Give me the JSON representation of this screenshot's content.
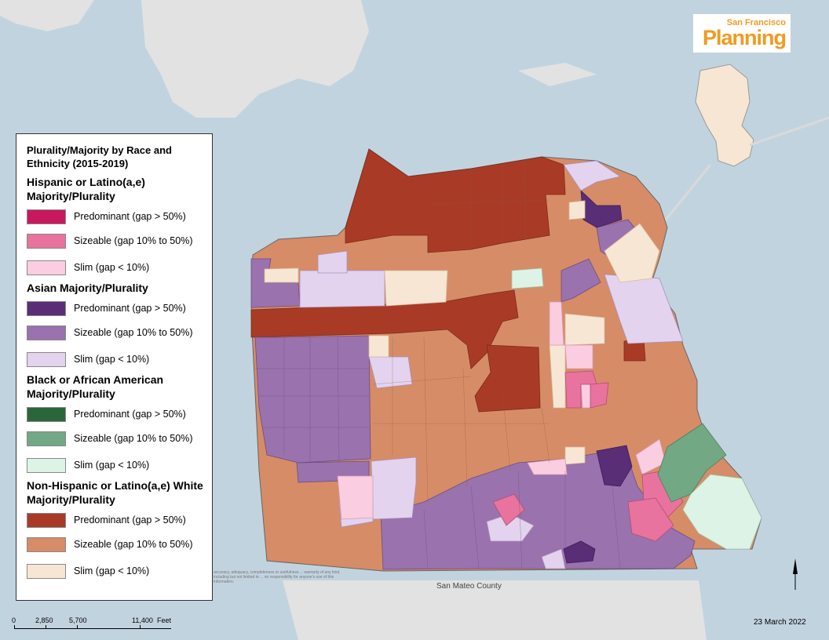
{
  "legend": {
    "title": "Plurality/Majority by Race and Ethnicity (2015-2019)",
    "groups": [
      {
        "title": "Hispanic or Latino(a,e) Majority/Plurality",
        "items": [
          {
            "label": "Predominant (gap > 50%)",
            "color": "#c7185e"
          },
          {
            "label": "Sizeable (gap 10% to 50%)",
            "color": "#e8739e"
          },
          {
            "label": "Slim (gap < 10%)",
            "color": "#fbcde0"
          }
        ]
      },
      {
        "title": "Asian Majority/Plurality",
        "items": [
          {
            "label": "Predominant (gap > 50%)",
            "color": "#5a2d77"
          },
          {
            "label": "Sizeable (gap 10% to 50%)",
            "color": "#9a72ae"
          },
          {
            "label": "Slim (gap < 10%)",
            "color": "#e3d3ee"
          }
        ]
      },
      {
        "title": "Black or African American Majority/Plurality",
        "items": [
          {
            "label": "Predominant (gap > 50%)",
            "color": "#2b663a"
          },
          {
            "label": "Sizeable (gap 10% to 50%)",
            "color": "#72a884"
          },
          {
            "label": "Slim (gap < 10%)",
            "color": "#dcf3e6"
          }
        ]
      },
      {
        "title": "Non-Hispanic or Latino(a,e) White Majority/Plurality",
        "items": [
          {
            "label": "Predominant (gap > 50%)",
            "color": "#a93b26"
          },
          {
            "label": "Sizeable (gap 10% to 50%)",
            "color": "#d68c67"
          },
          {
            "label": "Slim (gap < 10%)",
            "color": "#f8e6d5"
          }
        ]
      }
    ]
  },
  "logo": {
    "line1": "San Francisco",
    "line2": "Planning"
  },
  "scalebar": {
    "ticks": [
      "0",
      "2,850",
      "5,700",
      "11,400"
    ],
    "unit": "Feet"
  },
  "date": "23 March 2022",
  "county_label": "San Mateo County",
  "disclaimer": "accuracy, adequacy, completeness or usefulness ... warranty of any kind, including but not limited to ... no responsibility for anyone's use of this information.",
  "colors": {
    "water": "#c2d3e0",
    "land_bg": "#e2e2e2",
    "boundary": "#555555",
    "logo_orange": "#f29a1f"
  }
}
